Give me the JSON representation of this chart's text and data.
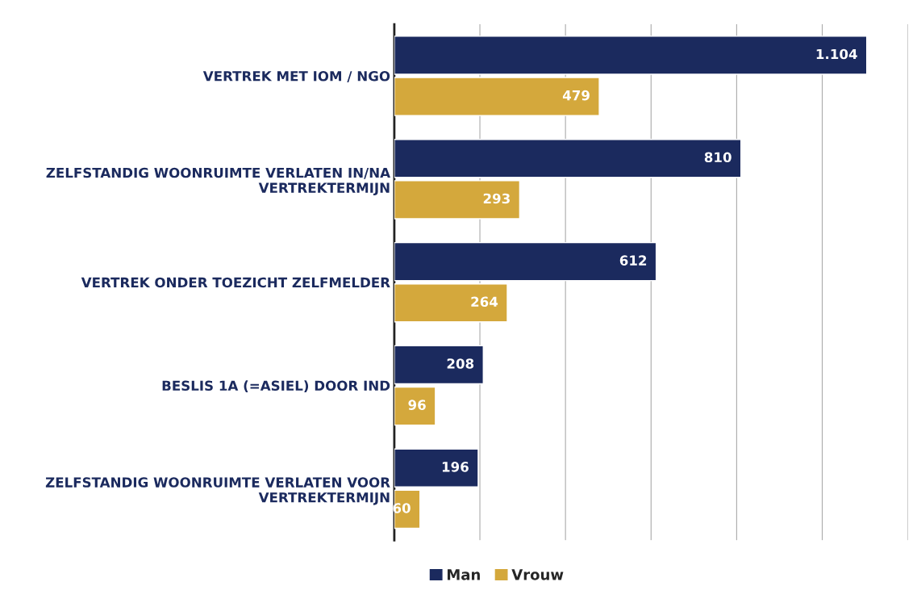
{
  "chart_data": {
    "type": "bar",
    "orientation": "horizontal",
    "categories": [
      "VERTREK MET IOM / NGO",
      "ZELFSTANDIG WOONRUIMTE VERLATEN IN/NA VERTREKTERMIJN",
      "VERTREK ONDER TOEZICHT ZELFMELDER",
      "BESLIS 1A (=ASIEL) DOOR IND",
      "ZELFSTANDIG WOONRUIMTE VERLATEN VOOR VERTREKTERMIJN"
    ],
    "series": [
      {
        "name": "Man",
        "color": "#1b2a5e",
        "values": [
          1104,
          810,
          612,
          208,
          196
        ],
        "value_labels": [
          "1.104",
          "810",
          "612",
          "208",
          "196"
        ]
      },
      {
        "name": "Vrouw",
        "color": "#d4a83c",
        "values": [
          479,
          293,
          264,
          96,
          60
        ],
        "value_labels": [
          "479",
          "293",
          "264",
          "96",
          "60"
        ]
      }
    ],
    "xlim": [
      0,
      1200
    ],
    "xticks": [
      {
        "value": 0,
        "label": null
      },
      {
        "value": 200,
        "label": null
      },
      {
        "value": 400,
        "label": null
      },
      {
        "value": 600,
        "label": null
      },
      {
        "value": 800,
        "label": null
      },
      {
        "value": 1000,
        "label": null
      },
      {
        "value": 1200,
        "label": null
      }
    ],
    "tick_labels": "y",
    "grid": "x",
    "legend": "bottom"
  }
}
